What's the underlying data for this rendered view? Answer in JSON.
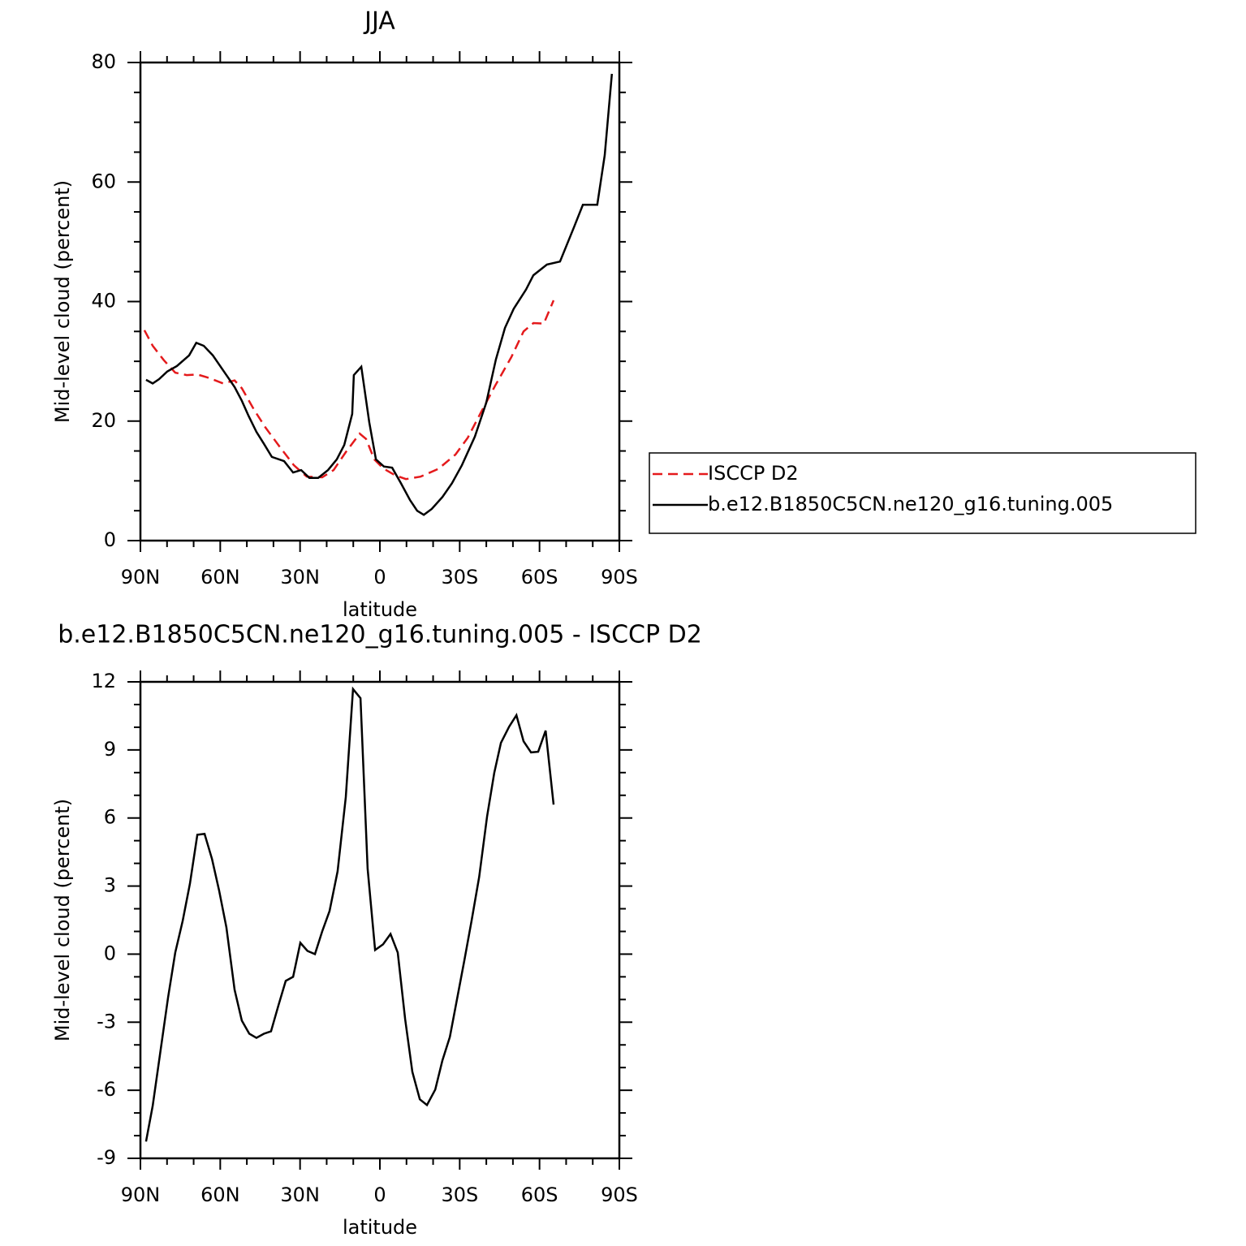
{
  "chart_data": [
    {
      "type": "line",
      "title": "JJA",
      "xlabel": "latitude",
      "ylabel": "Mid-level cloud (percent)",
      "xlim": [
        90,
        -90
      ],
      "xticks": [
        {
          "value": 90,
          "label": "90N"
        },
        {
          "value": 60,
          "label": "60N"
        },
        {
          "value": 30,
          "label": "30N"
        },
        0,
        {
          "value": -30,
          "label": "30S"
        },
        {
          "value": -60,
          "label": "60S"
        },
        {
          "value": -90,
          "label": "90S"
        }
      ],
      "ylim": [
        0,
        80
      ],
      "yticks": [
        0,
        20,
        40,
        60,
        80
      ],
      "legend": "right",
      "series": [
        {
          "name": "ISCCP D2",
          "color": "#e41a1c",
          "dash": true,
          "x": [
            88.5,
            85.4,
            81.2,
            76.9,
            72.6,
            68.6,
            64.1,
            58.9,
            54.6,
            51.9,
            47.3,
            43.0,
            37.5,
            32.3,
            27.5,
            21.7,
            17.4,
            12.8,
            7.6,
            5.2,
            2.1,
            -1.2,
            -5.8,
            -9.8,
            -15.3,
            -22.0,
            -28.4,
            -33.0,
            -37.8,
            -43.3,
            -49.4,
            -54.0,
            -57.7,
            -61.6,
            -65.3
          ],
          "values": [
            35.2,
            32.6,
            30.2,
            28.1,
            27.7,
            27.8,
            27.2,
            26.3,
            26.8,
            25.5,
            21.9,
            18.9,
            15.6,
            12.6,
            10.7,
            10.6,
            11.8,
            14.8,
            17.9,
            17.0,
            13.6,
            12.1,
            10.9,
            10.3,
            10.7,
            12.0,
            14.4,
            17.2,
            21.3,
            25.9,
            30.7,
            35.0,
            36.4,
            36.3,
            40.2
          ]
        },
        {
          "name": "b.e12.B1850C5CN.ne120_g16.tuning.005",
          "color": "#000000",
          "dash": false,
          "x": [
            87.9,
            85.4,
            83.0,
            79.9,
            76.3,
            71.7,
            69.0,
            66.2,
            62.8,
            57.7,
            54.6,
            51.9,
            49.4,
            46.4,
            43.6,
            40.6,
            36.0,
            32.6,
            29.6,
            26.5,
            23.2,
            19.5,
            16.2,
            13.4,
            10.4,
            9.8,
            7.0,
            4.0,
            1.5,
            -1.5,
            -4.6,
            -7.9,
            -11.3,
            -14.0,
            -16.5,
            -19.5,
            -23.5,
            -27.1,
            -30.8,
            -35.7,
            -40.0,
            -43.6,
            -47.0,
            -50.3,
            -54.9,
            -57.7,
            -62.8,
            -67.7,
            -72.9,
            -76.3,
            -81.7,
            -84.5,
            -87.2
          ],
          "values": [
            26.9,
            26.3,
            27.0,
            28.3,
            29.2,
            31.0,
            33.1,
            32.6,
            31.0,
            27.7,
            25.7,
            23.4,
            20.9,
            18.2,
            16.2,
            14.0,
            13.3,
            11.4,
            11.8,
            10.5,
            10.5,
            11.8,
            13.6,
            16.0,
            21.2,
            27.7,
            29.1,
            19.8,
            13.6,
            12.4,
            12.2,
            9.6,
            6.8,
            5.0,
            4.3,
            5.3,
            7.3,
            9.6,
            12.6,
            17.4,
            23.1,
            30.3,
            35.6,
            38.8,
            42.0,
            44.4,
            46.2,
            46.7,
            52.4,
            56.2,
            56.2,
            64.5,
            78.1
          ]
        }
      ]
    },
    {
      "type": "line",
      "title": "b.e12.B1850C5CN.ne120_g16.tuning.005 - ISCCP D2",
      "xlabel": "latitude",
      "ylabel": "Mid-level cloud (percent)",
      "xlim": [
        90,
        -90
      ],
      "xticks": [
        {
          "value": 90,
          "label": "90N"
        },
        {
          "value": 60,
          "label": "60N"
        },
        {
          "value": 30,
          "label": "30N"
        },
        0,
        {
          "value": -30,
          "label": "30S"
        },
        {
          "value": -60,
          "label": "60S"
        },
        {
          "value": -90,
          "label": "90S"
        }
      ],
      "ylim": [
        -9,
        12
      ],
      "yticks": [
        -9,
        -6,
        -3,
        0,
        3,
        6,
        9,
        12
      ],
      "series": [
        {
          "color": "#000000",
          "dash": false,
          "x": [
            87.9,
            85.4,
            82.7,
            79.6,
            76.9,
            74.1,
            71.4,
            68.6,
            65.9,
            63.1,
            60.4,
            57.7,
            54.6,
            51.9,
            49.1,
            46.4,
            43.6,
            40.9,
            38.1,
            35.4,
            32.6,
            29.9,
            27.2,
            24.4,
            21.7,
            18.9,
            15.9,
            12.8,
            10.1,
            7.3,
            4.6,
            1.8,
            -1.2,
            -4.0,
            -6.7,
            -9.5,
            -12.2,
            -15.0,
            -17.7,
            -20.8,
            -23.5,
            -26.3,
            -29.0,
            -31.8,
            -34.5,
            -37.3,
            -40.3,
            -43.0,
            -45.5,
            -48.6,
            -51.3,
            -54.0,
            -56.8,
            -59.5,
            -62.3,
            -65.3
          ],
          "values": [
            -8.26,
            -6.69,
            -4.47,
            -1.9,
            0.07,
            1.47,
            3.11,
            5.26,
            5.3,
            4.19,
            2.79,
            1.18,
            -1.57,
            -2.93,
            -3.51,
            -3.69,
            -3.51,
            -3.4,
            -2.25,
            -1.18,
            -1.0,
            0.5,
            0.14,
            0.0,
            1.0,
            1.9,
            3.65,
            6.92,
            11.68,
            11.28,
            3.76,
            0.18,
            0.43,
            0.89,
            0.07,
            -2.86,
            -5.19,
            -6.4,
            -6.65,
            -5.97,
            -4.69,
            -3.65,
            -1.97,
            -0.25,
            1.5,
            3.4,
            6.08,
            7.99,
            9.31,
            10.03,
            10.53,
            9.38,
            8.89,
            8.92,
            9.85,
            6.59
          ]
        }
      ]
    }
  ]
}
